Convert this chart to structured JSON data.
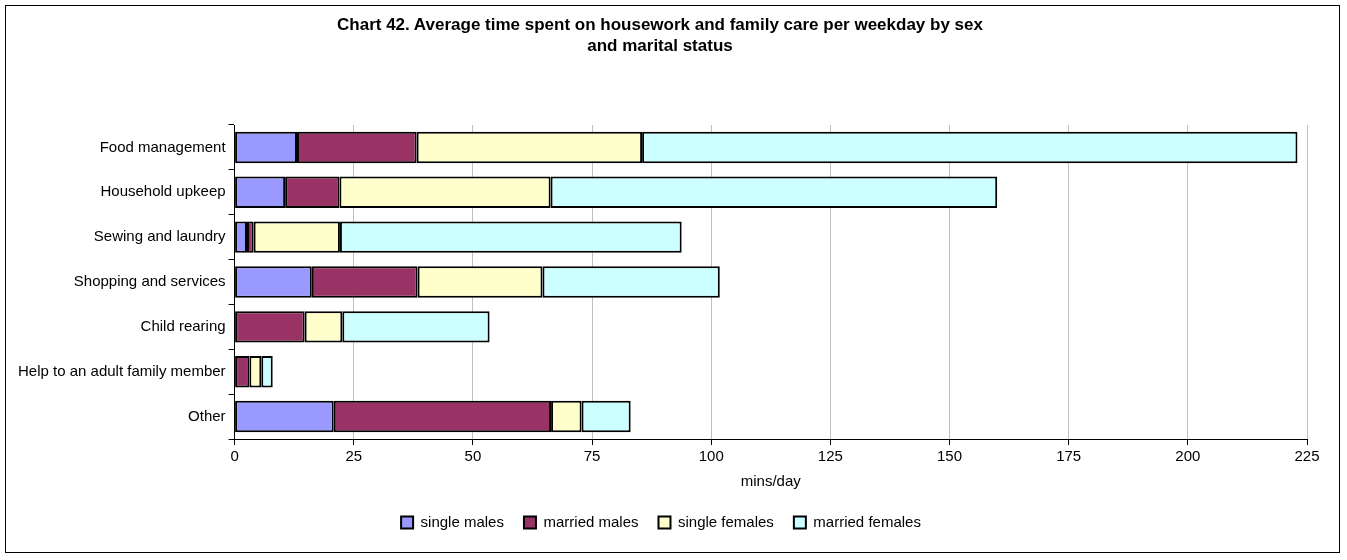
{
  "chart_data": {
    "type": "bar",
    "orientation": "horizontal",
    "stacked": true,
    "title": "Chart 42.  Average time spent on housework and family care per weekday by sex and marital status",
    "xlabel": "mins/day",
    "categories": [
      "Food management",
      "Household upkeep",
      "Sewing and laundry",
      "Shopping and services",
      "Child rearing",
      "Help to an adult family member",
      "Other"
    ],
    "series": [
      {
        "name": "single males",
        "color": "#9999ff",
        "values": [
          13.1,
          10.6,
          2.6,
          16.2,
          0,
          0,
          20.8
        ]
      },
      {
        "name": "married males",
        "color": "#993366",
        "values": [
          25.1,
          11.4,
          1.4,
          22.2,
          14.7,
          3.1,
          45.6
        ]
      },
      {
        "name": "single females",
        "color": "#ffffcc",
        "values": [
          47.3,
          44.3,
          18.1,
          26.2,
          7.9,
          2.5,
          6.4
        ]
      },
      {
        "name": "married females",
        "color": "#ccffff",
        "values": [
          137.5,
          93.7,
          71.7,
          37.2,
          30.9,
          2.4,
          10.3
        ]
      }
    ],
    "xlim": [
      0,
      225
    ],
    "xticks": [
      0,
      25,
      50,
      75,
      100,
      125,
      150,
      175,
      200,
      225
    ],
    "grid": "x",
    "legend": "bottom"
  }
}
